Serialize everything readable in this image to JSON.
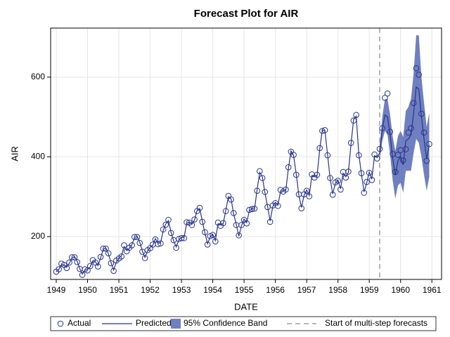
{
  "chart_data": {
    "type": "forecast",
    "title": "Forecast Plot for AIR",
    "x_label": "DATE",
    "y_label": "AIR",
    "x": [
      1949,
      1949.083,
      1949.167,
      1949.25,
      1949.333,
      1949.417,
      1949.5,
      1949.583,
      1949.667,
      1949.75,
      1949.833,
      1949.917,
      1950,
      1950.083,
      1950.167,
      1950.25,
      1950.333,
      1950.417,
      1950.5,
      1950.583,
      1950.667,
      1950.75,
      1950.833,
      1950.917,
      1951,
      1951.083,
      1951.167,
      1951.25,
      1951.333,
      1951.417,
      1951.5,
      1951.583,
      1951.667,
      1951.75,
      1951.833,
      1951.917,
      1952,
      1952.083,
      1952.167,
      1952.25,
      1952.333,
      1952.417,
      1952.5,
      1952.583,
      1952.667,
      1952.75,
      1952.833,
      1952.917,
      1953,
      1953.083,
      1953.167,
      1953.25,
      1953.333,
      1953.417,
      1953.5,
      1953.583,
      1953.667,
      1953.75,
      1953.833,
      1953.917,
      1954,
      1954.083,
      1954.167,
      1954.25,
      1954.333,
      1954.417,
      1954.5,
      1954.583,
      1954.667,
      1954.75,
      1954.833,
      1954.917,
      1955,
      1955.083,
      1955.167,
      1955.25,
      1955.333,
      1955.417,
      1955.5,
      1955.583,
      1955.667,
      1955.75,
      1955.833,
      1955.917,
      1956,
      1956.083,
      1956.167,
      1956.25,
      1956.333,
      1956.417,
      1956.5,
      1956.583,
      1956.667,
      1956.75,
      1956.833,
      1956.917,
      1957,
      1957.083,
      1957.167,
      1957.25,
      1957.333,
      1957.417,
      1957.5,
      1957.583,
      1957.667,
      1957.75,
      1957.833,
      1957.917,
      1958,
      1958.083,
      1958.167,
      1958.25,
      1958.333,
      1958.417,
      1958.5,
      1958.583,
      1958.667,
      1958.75,
      1958.833,
      1958.917,
      1959,
      1959.083,
      1959.167,
      1959.25,
      1959.333,
      1959.417,
      1959.5,
      1959.583,
      1959.667,
      1959.75,
      1959.833,
      1959.917,
      1960,
      1960.083,
      1960.167,
      1960.25,
      1960.333,
      1960.417,
      1960.5,
      1960.583,
      1960.667,
      1960.75,
      1960.833,
      1960.917
    ],
    "series": [
      {
        "name": "Actual",
        "color": "#27348b",
        "values": [
          112,
          118,
          132,
          129,
          121,
          135,
          148,
          148,
          136,
          119,
          104,
          118,
          115,
          126,
          141,
          135,
          125,
          149,
          170,
          170,
          158,
          133,
          114,
          140,
          145,
          150,
          178,
          163,
          172,
          178,
          199,
          199,
          184,
          162,
          146,
          166,
          171,
          180,
          193,
          181,
          183,
          218,
          230,
          242,
          209,
          191,
          172,
          194,
          196,
          196,
          236,
          235,
          229,
          243,
          264,
          272,
          237,
          211,
          180,
          201,
          204,
          188,
          235,
          227,
          234,
          264,
          302,
          293,
          259,
          229,
          203,
          229,
          242,
          233,
          267,
          269,
          270,
          315,
          364,
          347,
          312,
          274,
          237,
          278,
          284,
          277,
          317,
          313,
          318,
          374,
          413,
          405,
          355,
          306,
          271,
          306,
          315,
          301,
          356,
          348,
          355,
          422,
          465,
          467,
          404,
          347,
          305,
          336,
          340,
          318,
          362,
          348,
          363,
          435,
          491,
          505,
          404,
          359,
          310,
          337,
          360,
          342,
          406,
          396,
          420,
          472,
          548,
          559,
          463,
          407,
          362,
          405,
          417,
          391,
          419,
          461,
          472,
          535,
          622,
          606,
          508,
          461,
          390,
          432
        ]
      },
      {
        "name": "Predicted",
        "color": "#27348b",
        "values": [
          112,
          118,
          130,
          129,
          123,
          133,
          146,
          150,
          138,
          120,
          106,
          116,
          117,
          124,
          139,
          137,
          127,
          146,
          168,
          172,
          156,
          135,
          116,
          136,
          146,
          152,
          175,
          165,
          170,
          180,
          197,
          201,
          186,
          164,
          148,
          164,
          173,
          178,
          195,
          183,
          185,
          215,
          232,
          240,
          211,
          189,
          174,
          192,
          198,
          198,
          233,
          237,
          231,
          241,
          266,
          270,
          239,
          209,
          182,
          199,
          206,
          190,
          232,
          229,
          232,
          266,
          300,
          295,
          257,
          231,
          201,
          227,
          244,
          235,
          264,
          271,
          268,
          318,
          361,
          350,
          310,
          276,
          239,
          275,
          286,
          279,
          314,
          315,
          316,
          371,
          415,
          403,
          357,
          304,
          273,
          303,
          317,
          303,
          353,
          350,
          353,
          419,
          468,
          465,
          406,
          345,
          307,
          333,
          342,
          320,
          359,
          350,
          361,
          432,
          494,
          502,
          406,
          357,
          312,
          334,
          362,
          344,
          403,
          398,
          410,
          470,
          505,
          500,
          455,
          395,
          355,
          390,
          400,
          380,
          440,
          445,
          455,
          510,
          575,
          570,
          500,
          445,
          395,
          430
        ]
      },
      {
        "name": "95% Confidence Band",
        "color": "#6f7fc0",
        "lower": [
          null,
          null,
          null,
          null,
          null,
          null,
          null,
          null,
          null,
          null,
          null,
          null,
          null,
          null,
          null,
          null,
          null,
          null,
          null,
          null,
          null,
          null,
          null,
          null,
          null,
          null,
          null,
          null,
          null,
          null,
          null,
          null,
          null,
          null,
          null,
          null,
          null,
          null,
          null,
          null,
          null,
          null,
          null,
          null,
          null,
          null,
          null,
          null,
          null,
          null,
          null,
          null,
          null,
          null,
          null,
          null,
          null,
          null,
          null,
          null,
          null,
          null,
          null,
          null,
          null,
          null,
          null,
          null,
          null,
          null,
          null,
          null,
          null,
          null,
          null,
          null,
          null,
          null,
          null,
          null,
          null,
          null,
          null,
          null,
          null,
          null,
          null,
          null,
          null,
          null,
          null,
          null,
          null,
          null,
          null,
          null,
          null,
          null,
          null,
          null,
          null,
          null,
          null,
          null,
          null,
          null,
          null,
          null,
          null,
          null,
          null,
          null,
          null,
          null,
          null,
          null,
          null,
          null,
          null,
          null,
          null,
          null,
          null,
          null,
          390,
          440,
          465,
          455,
          405,
          340,
          295,
          328,
          335,
          310,
          365,
          365,
          365,
          410,
          445,
          435,
          400,
          355,
          315,
          350
        ],
        "upper": [
          null,
          null,
          null,
          null,
          null,
          null,
          null,
          null,
          null,
          null,
          null,
          null,
          null,
          null,
          null,
          null,
          null,
          null,
          null,
          null,
          null,
          null,
          null,
          null,
          null,
          null,
          null,
          null,
          null,
          null,
          null,
          null,
          null,
          null,
          null,
          null,
          null,
          null,
          null,
          null,
          null,
          null,
          null,
          null,
          null,
          null,
          null,
          null,
          null,
          null,
          null,
          null,
          null,
          null,
          null,
          null,
          null,
          null,
          null,
          null,
          null,
          null,
          null,
          null,
          null,
          null,
          null,
          null,
          null,
          null,
          null,
          null,
          null,
          null,
          null,
          null,
          null,
          null,
          null,
          null,
          null,
          null,
          null,
          null,
          null,
          null,
          null,
          null,
          null,
          null,
          null,
          null,
          null,
          null,
          null,
          null,
          null,
          null,
          null,
          null,
          null,
          null,
          null,
          null,
          null,
          null,
          null,
          null,
          null,
          null,
          null,
          null,
          null,
          null,
          null,
          null,
          null,
          null,
          null,
          null,
          null,
          null,
          null,
          null,
          430,
          500,
          545,
          545,
          505,
          450,
          415,
          452,
          465,
          450,
          515,
          525,
          545,
          610,
          705,
          705,
          600,
          535,
          475,
          510
        ]
      }
    ],
    "reference_line": {
      "name": "Start of multi-step forecasts",
      "x": 1959.333,
      "color": "#a0a0a0"
    },
    "xlim": [
      1948.82,
      1961.31
    ],
    "xticks": [
      1949,
      1950,
      1951,
      1952,
      1953,
      1954,
      1955,
      1956,
      1957,
      1958,
      1959,
      1960,
      1961
    ],
    "ylim": [
      92.5,
      723
    ],
    "yticks": [
      200,
      400,
      600
    ],
    "grid": true,
    "legend": "bottom"
  }
}
